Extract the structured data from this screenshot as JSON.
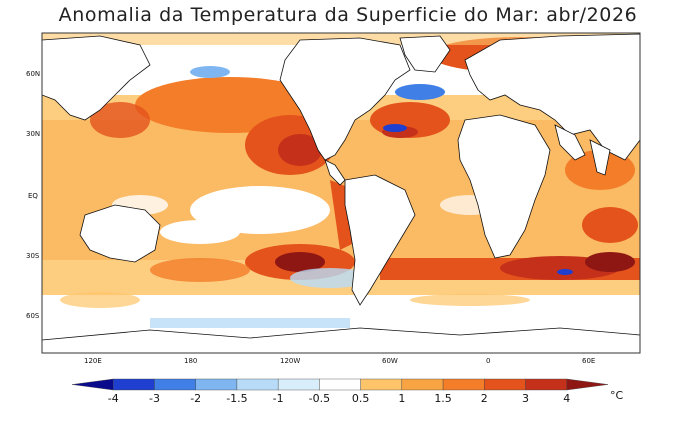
{
  "title": "Anomalia da Temperatura da Superficie do Mar: abr/2026",
  "axes": {
    "lat_ticks": [
      "60N",
      "30N",
      "EQ",
      "30S",
      "60S"
    ],
    "lon_ticks": [
      "120E",
      "180",
      "120W",
      "60W",
      "0",
      "60E"
    ]
  },
  "colorbar": {
    "unit": "°C",
    "levels": [
      "-4",
      "-3",
      "-2",
      "-1.5",
      "-1",
      "-0.5",
      "0.5",
      "1",
      "1.5",
      "2",
      "3",
      "4"
    ],
    "colors": [
      "#0a0a8c",
      "#1e3fd0",
      "#3f7fe6",
      "#7fb6f2",
      "#b8dcf8",
      "#d9eefb",
      "#ffffff",
      "#fdc46a",
      "#f9a442",
      "#f37d29",
      "#e3531b",
      "#c4301a",
      "#8e1714"
    ]
  },
  "colors": {
    "land": "#ffffff",
    "coast": "#111111",
    "frame": "#333333"
  }
}
